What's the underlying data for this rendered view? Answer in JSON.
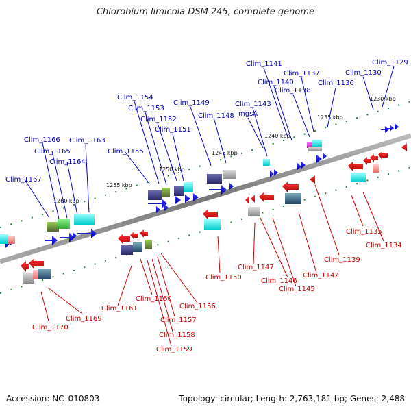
{
  "title": "Chlorobium limicola DSM 245, complete genome",
  "footer": {
    "accession": "Accession: NC_010803",
    "info": "Topology: circular; Length: 2,763,181 bp; Genes: 2,488"
  },
  "colors": {
    "forward_label": "#0000bb",
    "reverse_label": "#cc0000",
    "backbone": "#888888",
    "tick": "#2a7f2a"
  },
  "kbp_labels": [
    "1230 kbp",
    "1235 kbp",
    "1240 kbp",
    "1245 kbp",
    "1250 kbp",
    "1255 kbp",
    "1260 kbp"
  ],
  "forward_genes": [
    "Clim_1129",
    "Clim_1130",
    "Clim_1136",
    "Clim_1137",
    "Clim_1138",
    "Clim_1140",
    "Clim_1141",
    "Clim_1143",
    "mgsA",
    "Clim_1148",
    "Clim_1149",
    "Clim_1151",
    "Clim_1152",
    "Clim_1153",
    "Clim_1154",
    "Clim_1155",
    "Clim_1163",
    "Clim_1164",
    "Clim_1165",
    "Clim_1166",
    "Clim_1167"
  ],
  "reverse_genes": [
    "Clim_1134",
    "Clim_1135",
    "Clim_1139",
    "Clim_1142",
    "Clim_1145",
    "Clim_1146",
    "Clim_1147",
    "Clim_1150",
    "Clim_1156",
    "Clim_1157",
    "Clim_1158",
    "Clim_1159",
    "Clim_1160",
    "Clim_1161",
    "Clim_1169",
    "Clim_1170"
  ]
}
